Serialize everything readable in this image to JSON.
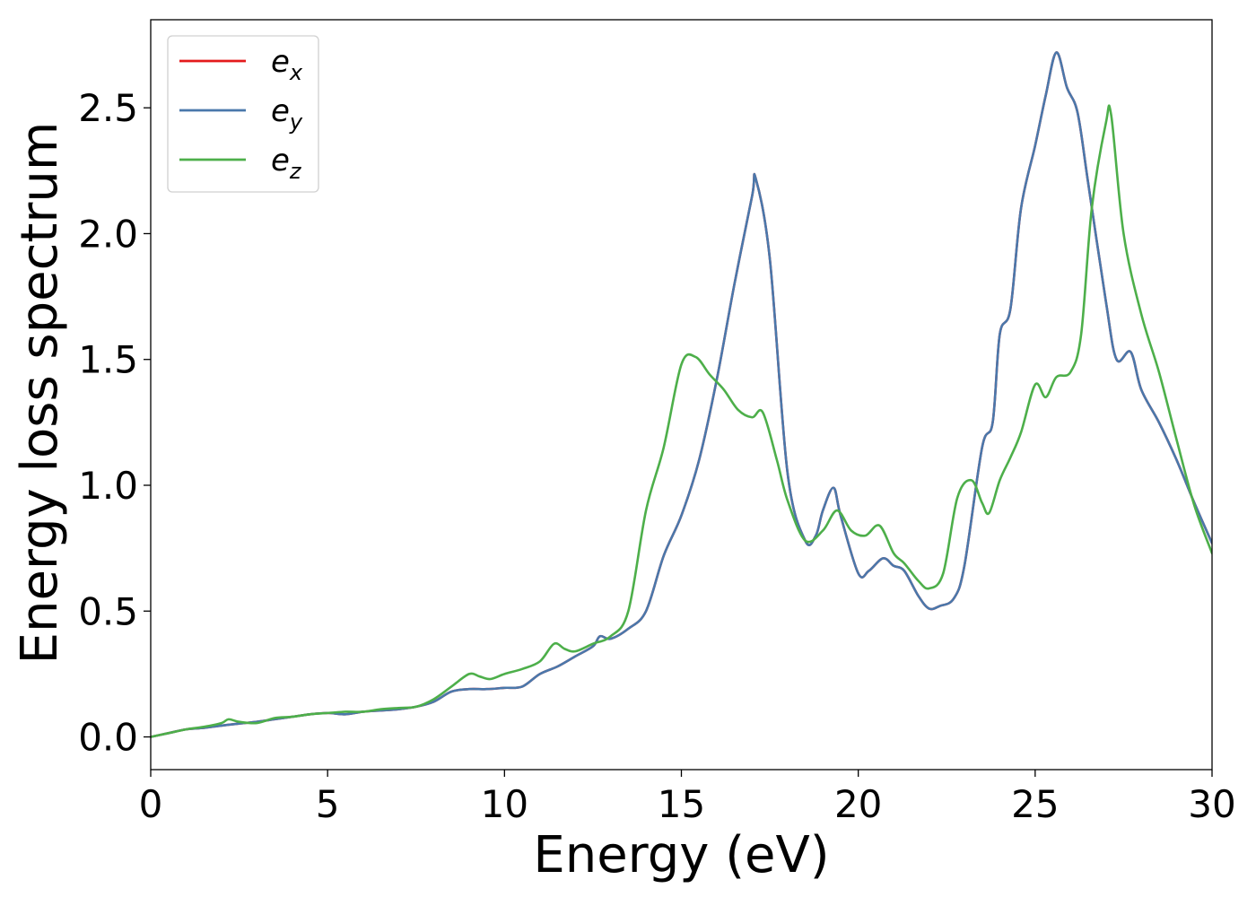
{
  "chart_data": {
    "type": "line",
    "title": "",
    "xlabel": "Energy (eV)",
    "ylabel": "Energy loss spectrum",
    "xlim": [
      0,
      30
    ],
    "ylim": [
      -0.13,
      2.85
    ],
    "xticks": [
      0,
      5,
      10,
      15,
      20,
      25,
      30
    ],
    "xtick_labels": [
      "0",
      "5",
      "10",
      "15",
      "20",
      "25",
      "30"
    ],
    "yticks": [
      0.0,
      0.5,
      1.0,
      1.5,
      2.0,
      2.5
    ],
    "ytick_labels": [
      "0.0",
      "0.5",
      "1.0",
      "1.5",
      "2.0",
      "2.5"
    ],
    "grid": false,
    "legend_position": "top-left",
    "series": [
      {
        "name": "e_x",
        "legend_base": "e",
        "legend_sub": "x",
        "color": "#e41a1c",
        "x": [
          0,
          0.5,
          1,
          1.5,
          2,
          2.5,
          3,
          3.5,
          4,
          4.5,
          5,
          5.5,
          6,
          6.5,
          7,
          7.5,
          8,
          8.5,
          9,
          9.5,
          10,
          10.5,
          11,
          11.5,
          12,
          12.5,
          12.7,
          13,
          13.5,
          14,
          14.5,
          15,
          15.5,
          16,
          16.5,
          17,
          17.1,
          17.5,
          18,
          18.5,
          18.8,
          19,
          19.3,
          19.5,
          20,
          20.3,
          20.7,
          21,
          21.3,
          21.7,
          22,
          22.3,
          22.7,
          23,
          23.5,
          23.8,
          24,
          24.3,
          24.6,
          25,
          25.3,
          25.6,
          25.9,
          26.2,
          26.5,
          27,
          27.3,
          27.7,
          28,
          28.5,
          29,
          29.5,
          30
        ],
        "values": [
          0.0,
          0.015,
          0.03,
          0.036,
          0.045,
          0.053,
          0.06,
          0.07,
          0.08,
          0.09,
          0.095,
          0.09,
          0.1,
          0.105,
          0.11,
          0.12,
          0.14,
          0.18,
          0.19,
          0.19,
          0.195,
          0.2,
          0.25,
          0.28,
          0.32,
          0.36,
          0.4,
          0.39,
          0.43,
          0.5,
          0.72,
          0.88,
          1.1,
          1.42,
          1.8,
          2.15,
          2.22,
          1.9,
          1.05,
          0.78,
          0.8,
          0.9,
          0.99,
          0.88,
          0.65,
          0.66,
          0.71,
          0.68,
          0.66,
          0.56,
          0.51,
          0.52,
          0.55,
          0.68,
          1.15,
          1.25,
          1.6,
          1.7,
          2.1,
          2.35,
          2.55,
          2.72,
          2.58,
          2.48,
          2.2,
          1.73,
          1.5,
          1.53,
          1.38,
          1.25,
          1.1,
          0.93,
          0.77
        ]
      },
      {
        "name": "e_y",
        "legend_base": "e",
        "legend_sub": "y",
        "color": "#4a78ab",
        "x": [
          0,
          0.5,
          1,
          1.5,
          2,
          2.5,
          3,
          3.5,
          4,
          4.5,
          5,
          5.5,
          6,
          6.5,
          7,
          7.5,
          8,
          8.5,
          9,
          9.5,
          10,
          10.5,
          11,
          11.5,
          12,
          12.5,
          12.7,
          13,
          13.5,
          14,
          14.5,
          15,
          15.5,
          16,
          16.5,
          17,
          17.1,
          17.5,
          18,
          18.5,
          18.8,
          19,
          19.3,
          19.5,
          20,
          20.3,
          20.7,
          21,
          21.3,
          21.7,
          22,
          22.3,
          22.7,
          23,
          23.5,
          23.8,
          24,
          24.3,
          24.6,
          25,
          25.3,
          25.6,
          25.9,
          26.2,
          26.5,
          27,
          27.3,
          27.7,
          28,
          28.5,
          29,
          29.5,
          30
        ],
        "values": [
          0.0,
          0.015,
          0.03,
          0.036,
          0.045,
          0.053,
          0.06,
          0.07,
          0.08,
          0.09,
          0.095,
          0.09,
          0.1,
          0.105,
          0.11,
          0.12,
          0.14,
          0.18,
          0.19,
          0.19,
          0.195,
          0.2,
          0.25,
          0.28,
          0.32,
          0.36,
          0.4,
          0.39,
          0.43,
          0.5,
          0.72,
          0.88,
          1.1,
          1.42,
          1.8,
          2.15,
          2.22,
          1.9,
          1.05,
          0.78,
          0.8,
          0.9,
          0.99,
          0.88,
          0.65,
          0.66,
          0.71,
          0.68,
          0.66,
          0.56,
          0.51,
          0.52,
          0.55,
          0.68,
          1.15,
          1.25,
          1.6,
          1.7,
          2.1,
          2.35,
          2.55,
          2.72,
          2.58,
          2.48,
          2.2,
          1.73,
          1.5,
          1.53,
          1.38,
          1.25,
          1.1,
          0.93,
          0.77
        ]
      },
      {
        "name": "e_z",
        "legend_base": "e",
        "legend_sub": "z",
        "color": "#4daf4a",
        "x": [
          0,
          0.5,
          1,
          1.5,
          2,
          2.2,
          2.5,
          3,
          3.5,
          4,
          4.5,
          5,
          5.5,
          6,
          6.5,
          7,
          7.5,
          8,
          8.5,
          9,
          9.3,
          9.6,
          10,
          10.5,
          11,
          11.4,
          11.7,
          12,
          12.5,
          13,
          13.5,
          14,
          14.5,
          15,
          15.4,
          15.8,
          16.2,
          16.6,
          17,
          17.3,
          17.7,
          18,
          18.5,
          19,
          19.4,
          19.8,
          20.2,
          20.6,
          21,
          21.3,
          21.7,
          22,
          22.4,
          22.8,
          23.2,
          23.5,
          23.7,
          24,
          24.3,
          24.6,
          25,
          25.3,
          25.6,
          26,
          26.3,
          26.6,
          27,
          27.15,
          27.5,
          28,
          28.5,
          29,
          29.5,
          30
        ],
        "values": [
          0.0,
          0.015,
          0.03,
          0.04,
          0.055,
          0.07,
          0.06,
          0.055,
          0.075,
          0.08,
          0.09,
          0.095,
          0.1,
          0.1,
          0.11,
          0.115,
          0.12,
          0.15,
          0.2,
          0.25,
          0.24,
          0.23,
          0.25,
          0.27,
          0.3,
          0.37,
          0.35,
          0.34,
          0.37,
          0.4,
          0.5,
          0.9,
          1.15,
          1.48,
          1.51,
          1.44,
          1.38,
          1.3,
          1.27,
          1.29,
          1.1,
          0.94,
          0.78,
          0.82,
          0.9,
          0.82,
          0.8,
          0.84,
          0.73,
          0.69,
          0.62,
          0.59,
          0.65,
          0.95,
          1.02,
          0.93,
          0.89,
          1.02,
          1.11,
          1.21,
          1.4,
          1.35,
          1.43,
          1.45,
          1.6,
          2.1,
          2.44,
          2.47,
          2.0,
          1.68,
          1.45,
          1.18,
          0.92,
          0.73
        ]
      }
    ]
  }
}
